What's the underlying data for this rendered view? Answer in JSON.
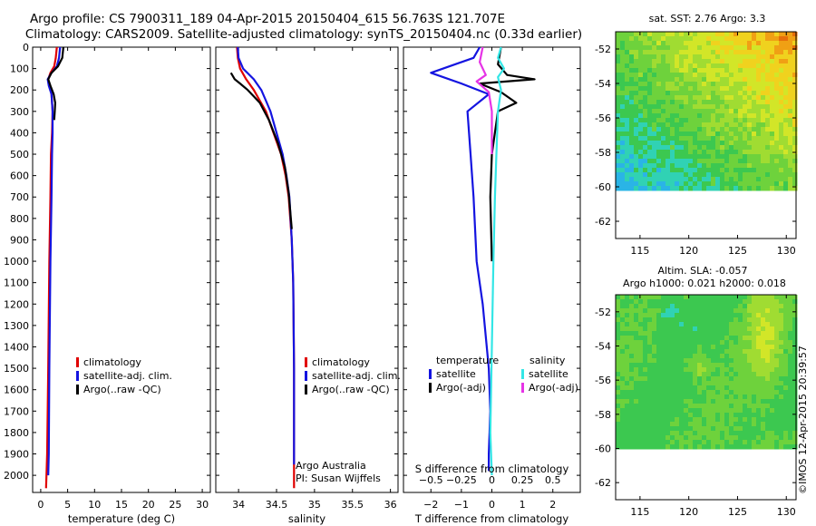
{
  "title_line1": "Argo profile: CS 7900311_189 04-Apr-2015 20150404_615 56.763S 121.707E",
  "title_line2": "Climatology: CARS2009. Satellite-adjusted climatology: synTS_20150404.nc (0.33d earlier)",
  "colors": {
    "clim": "#e00000",
    "sat": "#1414e0",
    "argo": "#000000",
    "sat_s": "#33e6e6",
    "argo_s": "#e633e6"
  },
  "chart_data": [
    {
      "type": "line",
      "name": "temperature",
      "xlabel": "temperature (deg C)",
      "ylabel": "",
      "xlim": [
        -1.5,
        31.5
      ],
      "ylim": [
        2080,
        0
      ],
      "xticks": [
        0,
        5,
        10,
        15,
        20,
        25,
        30
      ],
      "yticks": [
        0,
        100,
        200,
        300,
        400,
        500,
        600,
        700,
        800,
        900,
        1000,
        1100,
        1200,
        1300,
        1400,
        1500,
        1600,
        1700,
        1800,
        1900,
        2000
      ],
      "legend": [
        "climatology",
        "satellite-adj. clim.",
        "Argo(..raw -QC)"
      ],
      "series": [
        {
          "key": "clim",
          "x": [
            3.0,
            2.8,
            2.5,
            1.8,
            1.4,
            1.6,
            2.0,
            2.2,
            2.1,
            1.9,
            1.8,
            1.6,
            1.4,
            1.2,
            1.0
          ],
          "y": [
            0,
            50,
            90,
            120,
            150,
            180,
            220,
            300,
            400,
            500,
            700,
            1000,
            1500,
            1900,
            2060
          ]
        },
        {
          "key": "sat",
          "x": [
            3.6,
            3.4,
            3.0,
            2.0,
            1.3,
            1.5,
            2.0,
            2.2,
            2.2,
            2.1,
            2.0,
            1.8,
            1.6,
            1.5,
            1.4
          ],
          "y": [
            0,
            50,
            90,
            120,
            150,
            180,
            220,
            300,
            400,
            500,
            700,
            1000,
            1500,
            1900,
            2000
          ]
        },
        {
          "key": "argo",
          "x": [
            4.2,
            4.0,
            3.2,
            2.0,
            1.4,
            1.8,
            2.4,
            2.7,
            2.6,
            2.5
          ],
          "y": [
            0,
            50,
            90,
            120,
            150,
            180,
            220,
            260,
            300,
            340
          ]
        }
      ]
    },
    {
      "type": "line",
      "name": "salinity",
      "xlabel": "salinity",
      "xlim": [
        33.7,
        36.1
      ],
      "ylim": [
        2080,
        0
      ],
      "xticks": [
        34,
        34.5,
        35,
        35.5,
        36
      ],
      "legend": [
        "climatology",
        "satellite-adj. clim.",
        "Argo(..raw -QC)"
      ],
      "annotation": [
        "Argo Australia",
        "PI: Susan Wijffels"
      ],
      "series": [
        {
          "key": "clim",
          "x": [
            33.98,
            33.99,
            34.02,
            34.1,
            34.2,
            34.28,
            34.36,
            34.46,
            34.56,
            34.62,
            34.66,
            34.7,
            34.72,
            34.73,
            34.73
          ],
          "y": [
            0,
            50,
            100,
            150,
            200,
            250,
            300,
            400,
            500,
            600,
            700,
            900,
            1100,
            1500,
            2060
          ]
        },
        {
          "key": "sat",
          "x": [
            33.99,
            34.0,
            34.06,
            34.2,
            34.3,
            34.36,
            34.42,
            34.5,
            34.58,
            34.63,
            34.67,
            34.7,
            34.72,
            34.73,
            34.73
          ],
          "y": [
            0,
            50,
            100,
            150,
            200,
            250,
            300,
            400,
            500,
            600,
            700,
            900,
            1100,
            1500,
            1950
          ]
        },
        {
          "key": "argo",
          "x": [
            33.9,
            33.95,
            34.02,
            34.12,
            34.2,
            34.28,
            34.4,
            34.52,
            34.61,
            34.66,
            34.7
          ],
          "y": [
            120,
            150,
            170,
            200,
            230,
            260,
            340,
            450,
            560,
            680,
            850
          ]
        }
      ]
    },
    {
      "type": "line",
      "name": "difference from climatology",
      "xlabel": "T difference from climatology",
      "xlabel2": "S difference from climatology",
      "xlim": [
        -2.9,
        2.9
      ],
      "ylim": [
        2080,
        0
      ],
      "xticks": [
        -2,
        -1,
        0,
        1,
        2
      ],
      "xticks_labels": [
        "−2",
        "−1",
        "0",
        "1",
        "2"
      ],
      "xticks2": [
        -0.5,
        -0.25,
        0,
        0.25,
        0.5
      ],
      "xticks2_labels": [
        "−0.5",
        "−0.25",
        "0",
        "0.25",
        "0.5"
      ],
      "legend_titles": [
        "temperature",
        "salinity"
      ],
      "legend": [
        "satellite",
        "Argo(-adj)",
        "satellite",
        "Argo(-adj)"
      ],
      "series": [
        {
          "key": "sat",
          "x": [
            -0.4,
            -0.6,
            -2.0,
            -1.0,
            -0.1,
            -0.8,
            -0.7,
            -0.6,
            -0.5,
            -0.3,
            -0.1,
            -0.05,
            -0.1,
            -0.1
          ],
          "y": [
            0,
            50,
            120,
            170,
            220,
            300,
            500,
            700,
            1000,
            1200,
            1500,
            1700,
            1900,
            1980
          ]
        },
        {
          "key": "argo",
          "x": [
            0.3,
            0.2,
            0.5,
            1.4,
            -0.4,
            0.3,
            0.8,
            0.2,
            0.0,
            -0.05,
            0.0
          ],
          "y": [
            0,
            80,
            130,
            150,
            170,
            210,
            260,
            300,
            500,
            700,
            1000
          ]
        },
        {
          "key": "sat_s",
          "x": [
            0.3,
            0.2,
            0.4,
            0.2,
            0.3,
            0.2,
            0.15,
            0.1,
            0.05,
            0.0,
            -0.05,
            0.0
          ],
          "y": [
            0,
            50,
            100,
            140,
            200,
            300,
            500,
            700,
            1000,
            1400,
            1800,
            2000
          ]
        },
        {
          "key": "argo_s",
          "x": [
            -0.3,
            -0.4,
            -0.2,
            -0.5,
            -0.1,
            0.0,
            0.0
          ],
          "y": [
            0,
            70,
            130,
            160,
            210,
            300,
            500
          ]
        }
      ]
    },
    {
      "type": "heatmap",
      "name": "sat. SST",
      "title": "sat. SST: 2.76 Argo: 3.3",
      "xlim": [
        112.5,
        131
      ],
      "ylim": [
        -63,
        -51
      ],
      "xticks": [
        115,
        120,
        125,
        130
      ],
      "yticks": [
        -52,
        -54,
        -56,
        -58,
        -60,
        -62
      ]
    },
    {
      "type": "heatmap",
      "name": "Altim. SLA",
      "title": [
        "Altim. SLA: -0.057",
        "Argo h1000: 0.021 h2000: 0.018"
      ],
      "xlim": [
        112.5,
        131
      ],
      "ylim": [
        -63,
        -51
      ],
      "xticks": [
        115,
        120,
        125,
        130
      ],
      "yticks": [
        -52,
        -54,
        -56,
        -58,
        -60,
        -62
      ]
    }
  ],
  "side_credit": "©IMOS 12-Apr-2015 20:39:57"
}
